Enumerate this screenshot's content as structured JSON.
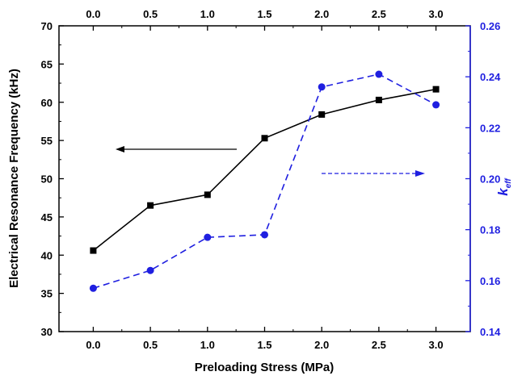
{
  "chart_data": {
    "type": "line",
    "x": [
      0.0,
      0.5,
      1.0,
      1.5,
      2.0,
      2.5,
      3.0
    ],
    "x_tick_labels": [
      "0.0",
      "0.5",
      "1.0",
      "1.5",
      "2.0",
      "2.5",
      "3.0"
    ],
    "xlabel": "Preloading Stress (MPa)",
    "xlim": [
      -0.3,
      3.3
    ],
    "ylabel": "Electrical Resonance Frequency (kHz)",
    "ylim": [
      30,
      70
    ],
    "y_tick_labels": [
      "30",
      "35",
      "40",
      "45",
      "50",
      "55",
      "60",
      "65",
      "70"
    ],
    "y2label": "k",
    "y2label_subscript": "eff",
    "y2lim": [
      0.14,
      0.26
    ],
    "y2_tick_labels": [
      "0.14",
      "0.16",
      "0.18",
      "0.20",
      "0.22",
      "0.24",
      "0.26"
    ],
    "grid": false,
    "series": [
      {
        "axis": "left",
        "values": [
          40.6,
          46.5,
          47.9,
          55.3,
          58.4,
          60.3,
          61.7
        ],
        "color": "#000000",
        "line_style": "solid",
        "marker": "square"
      },
      {
        "axis": "right",
        "values": [
          0.157,
          0.164,
          0.177,
          0.178,
          0.236,
          0.241,
          0.229
        ],
        "color": "#1f1fe0",
        "line_style": "dashed",
        "marker": "circle"
      }
    ],
    "annotations": [
      {
        "kind": "arrow",
        "direction": "left",
        "color": "#000000",
        "line_style": "solid",
        "meaning": "left axis"
      },
      {
        "kind": "arrow",
        "direction": "right",
        "color": "#1f1fe0",
        "line_style": "dashed",
        "meaning": "right axis"
      }
    ]
  }
}
